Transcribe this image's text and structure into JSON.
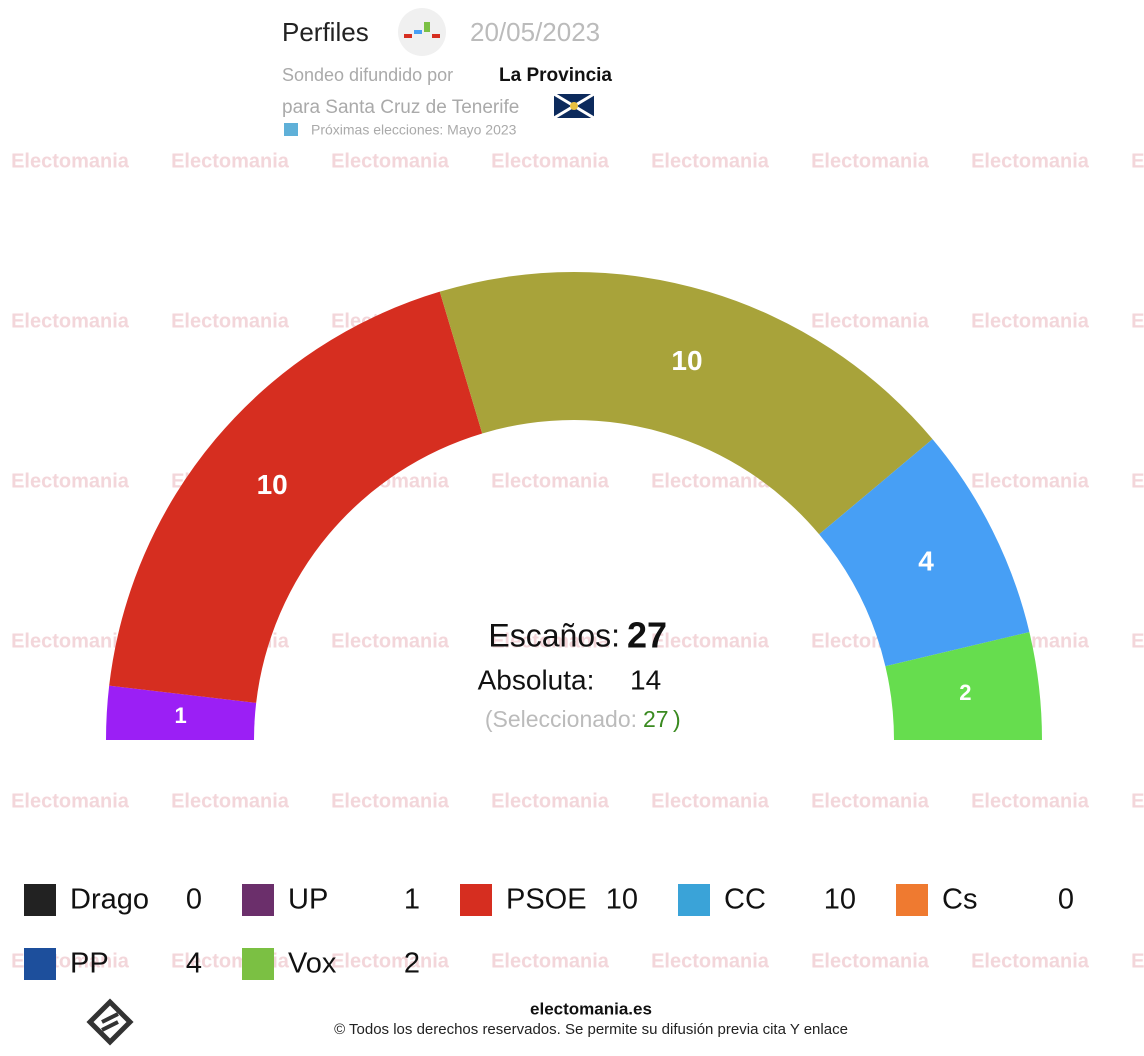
{
  "header": {
    "title": "Perfiles",
    "date": "20/05/2023",
    "source_prefix": "Sondeo difundido por",
    "source": "La Provincia",
    "scope": "para Santa Cruz de Tenerife",
    "next_election": "Próximas elecciones: Mayo 2023"
  },
  "watermark": "Electomania",
  "chart_data": {
    "type": "half-donut",
    "categories": [
      "Drago",
      "UP",
      "PSOE",
      "CC",
      "Cs",
      "PP",
      "Vox"
    ],
    "values": [
      0,
      1,
      10,
      10,
      0,
      4,
      2
    ],
    "colors": [
      "#333333",
      "#9b1ff5",
      "#d62e20",
      "#a8a33a",
      "#f28b2c",
      "#479ff5",
      "#66dd4e"
    ],
    "legend_colors": [
      "#222222",
      "#6b2f6b",
      "#d62e20",
      "#3aa3d8",
      "#ef7a30",
      "#1d4f9c",
      "#7bc043"
    ],
    "total_label": "Escaños:",
    "total": 27,
    "majority_label": "Absoluta:",
    "majority": 14,
    "selected_label": "(Seleccionado:",
    "selected": 27,
    "selected_close": ")"
  },
  "footer": {
    "site": "electomania.es",
    "copyright": "© Todos los derechos reservados. Se permite su difusión previa cita Y enlace"
  }
}
